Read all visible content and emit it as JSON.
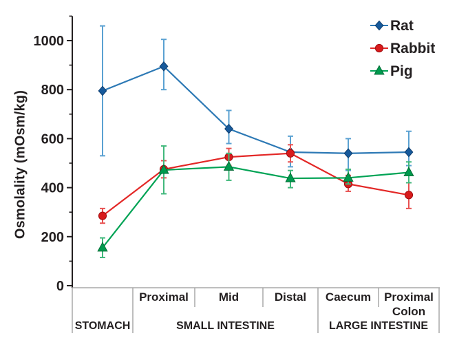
{
  "figure": {
    "background": "#ffffff",
    "text_color": "#231f20",
    "axis_color": "#231f20",
    "table_line_color": "#a8a8a8"
  },
  "chart_data": {
    "type": "line",
    "title": "",
    "ylabel": "Osmolality (mOsm/kg)",
    "ylim": [
      0,
      1100
    ],
    "yticks": [
      0,
      200,
      400,
      600,
      800,
      1000
    ],
    "minor_yticks": [
      100,
      300,
      500,
      700,
      900,
      1100
    ],
    "grid": false,
    "legend_position": "top-right",
    "categories": [
      "Stomach",
      "Small Intestine Proximal",
      "Small Intestine Mid",
      "Small Intestine Distal",
      "Caecum",
      "Proximal Colon"
    ],
    "segment_labels": [
      "",
      "Proximal",
      "Mid",
      "Distal",
      "Caecum",
      "Proximal\nColon"
    ],
    "region_labels": [
      {
        "label": "STOMACH",
        "from": 0,
        "to": 1
      },
      {
        "label": "SMALL INTESTINE",
        "from": 1,
        "to": 4
      },
      {
        "label": "LARGE INTESTINE",
        "from": 4,
        "to": 6
      }
    ],
    "series": [
      {
        "name": "Rat",
        "marker": "diamond",
        "line_color": "#2d79b5",
        "marker_color": "#175a9c",
        "marker_edge": "#0f3f70",
        "error_color": "#5aa1d2",
        "values": [
          795,
          895,
          640,
          545,
          540,
          545
        ],
        "err_low": [
          530,
          800,
          580,
          485,
          470,
          490
        ],
        "err_high": [
          1060,
          1005,
          715,
          610,
          600,
          630
        ]
      },
      {
        "name": "Rabbit",
        "marker": "circle",
        "line_color": "#e32726",
        "marker_color": "#d81b1c",
        "marker_edge": "#a00d10",
        "error_color": "#e85151",
        "values": [
          285,
          475,
          525,
          540,
          415,
          370
        ],
        "err_low": [
          255,
          440,
          490,
          505,
          385,
          315
        ],
        "err_high": [
          315,
          510,
          560,
          575,
          450,
          420
        ]
      },
      {
        "name": "Pig",
        "marker": "triangle",
        "line_color": "#00a355",
        "marker_color": "#009a4e",
        "marker_edge": "#006b35",
        "error_color": "#41b87c",
        "values": [
          155,
          472,
          485,
          438,
          440,
          462
        ],
        "err_low": [
          115,
          375,
          430,
          400,
          415,
          420
        ],
        "err_high": [
          195,
          570,
          540,
          470,
          475,
          505
        ]
      }
    ]
  }
}
